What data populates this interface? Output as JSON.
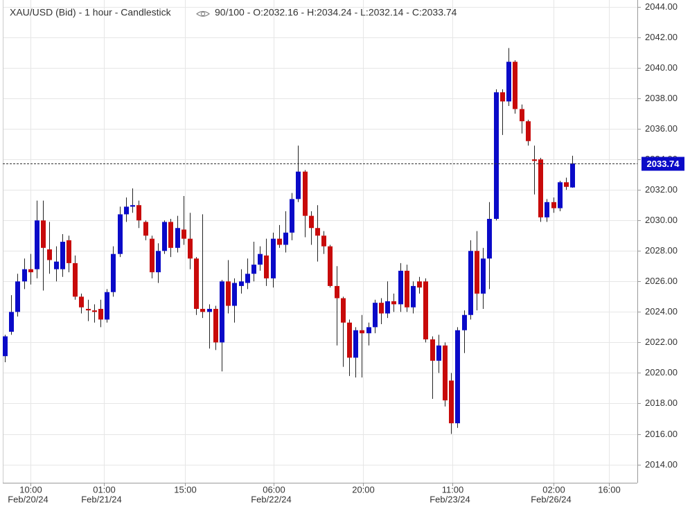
{
  "chart_data": {
    "type": "candlestick",
    "title": "XAU/USD (Bid) - 1 hour - Candlestick",
    "subtitle": "90/100 - O:2032.16 - H:2034.24 - L:2032.14 - C:2033.74",
    "up_color": "#0a0ac8",
    "down_color": "#c80a0a",
    "grid": true,
    "open": [
      2021.1,
      2022.7,
      2024.0,
      2026.0,
      2026.8,
      2026.8,
      2030.0,
      2028.1,
      2026.8,
      2026.8,
      2028.7,
      2027.2,
      2025.0,
      2024.2,
      2024.1,
      2024.2,
      2023.5,
      2025.3,
      2027.8,
      2030.4,
      2030.9,
      2031.0,
      2029.9,
      2028.8,
      2026.6,
      2028.0,
      2029.9,
      2028.2,
      2029.4,
      2028.8,
      2027.5,
      2024.2,
      2024.0,
      2024.2,
      2022.0,
      2026.0,
      2024.4,
      2025.7,
      2025.9,
      2026.5,
      2027.1,
      2027.7,
      2026.2,
      2028.8,
      2028.4,
      2029.2,
      2031.4,
      2033.2,
      2030.3,
      2029.5,
      2029.0,
      2028.3,
      2025.7,
      2024.9,
      2023.3,
      2021.0,
      2022.8,
      2022.6,
      2023.0,
      2024.6,
      2023.9,
      2024.7,
      2024.5,
      2026.7,
      2024.3,
      2026.0,
      2026.0,
      2022.2,
      2020.8,
      2021.8,
      2019.5,
      2016.7,
      2022.8,
      2023.8,
      2028.0,
      2025.2,
      2027.5,
      2030.1,
      2038.4,
      2037.8,
      2040.4,
      2037.3,
      2036.5,
      2034.0,
      2034.0,
      2030.2,
      2031.2,
      2030.8,
      2032.5,
      2032.16
    ],
    "high": [
      2022.5,
      2025.1,
      2026.5,
      2027.5,
      2027.8,
      2031.3,
      2031.3,
      2029.9,
      2028.3,
      2029.1,
      2029.0,
      2027.7,
      2025.2,
      2024.8,
      2024.5,
      2024.8,
      2025.5,
      2028.3,
      2030.9,
      2031.5,
      2032.1,
      2031.3,
      2030.0,
      2029.0,
      2028.5,
      2030.0,
      2030.1,
      2030.3,
      2031.6,
      2030.5,
      2027.6,
      2030.4,
      2024.5,
      2024.4,
      2026.1,
      2027.4,
      2026.2,
      2026.8,
      2027.5,
      2028.6,
      2028.3,
      2028.8,
      2029.2,
      2029.7,
      2030.6,
      2031.8,
      2034.9,
      2033.3,
      2030.6,
      2031.0,
      2029.3,
      2028.4,
      2027.0,
      2025.0,
      2023.5,
      2023.0,
      2023.8,
      2023.3,
      2024.8,
      2024.9,
      2026.0,
      2025.2,
      2027.2,
      2027.1,
      2026.0,
      2026.3,
      2026.2,
      2022.4,
      2022.5,
      2022.0,
      2020.0,
      2023.0,
      2024.1,
      2028.7,
      2029.3,
      2028.2,
      2031.2,
      2038.6,
      2038.6,
      2041.3,
      2040.5,
      2037.6,
      2036.6,
      2034.9,
      2034.1,
      2031.4,
      2031.5,
      2032.6,
      2032.8,
      2034.24
    ],
    "low": [
      2020.7,
      2022.5,
      2023.7,
      2025.5,
      2025.8,
      2026.2,
      2025.4,
      2026.5,
      2026.0,
      2026.3,
      2026.6,
      2024.8,
      2023.9,
      2023.4,
      2023.3,
      2023.0,
      2023.3,
      2025.0,
      2027.6,
      2029.9,
      2030.5,
      2029.5,
      2028.7,
      2026.2,
      2025.9,
      2027.8,
      2027.6,
      2027.9,
      2028.4,
      2026.8,
      2023.8,
      2023.6,
      2021.6,
      2021.5,
      2020.1,
      2023.9,
      2023.3,
      2025.2,
      2025.5,
      2026.0,
      2026.7,
      2025.7,
      2025.6,
      2028.2,
      2027.9,
      2028.7,
      2031.2,
      2028.9,
      2028.4,
      2027.3,
      2027.8,
      2025.6,
      2021.8,
      2020.4,
      2019.8,
      2019.7,
      2019.7,
      2021.8,
      2022.6,
      2023.2,
      2023.6,
      2024.0,
      2024.0,
      2024.0,
      2023.9,
      2025.2,
      2022.0,
      2018.3,
      2020.0,
      2017.8,
      2016.0,
      2016.4,
      2021.3,
      2023.5,
      2024.1,
      2024.2,
      2025.5,
      2030.0,
      2035.6,
      2037.5,
      2037.0,
      2035.7,
      2034.9,
      2031.7,
      2029.9,
      2029.9,
      2030.5,
      2030.6,
      2032.0,
      2032.14
    ],
    "close": [
      2022.4,
      2024.0,
      2026.0,
      2026.8,
      2026.6,
      2030.0,
      2028.2,
      2027.4,
      2027.3,
      2028.6,
      2027.2,
      2025.0,
      2024.3,
      2024.1,
      2024.0,
      2023.5,
      2025.3,
      2027.8,
      2030.4,
      2030.9,
      2031.0,
      2030.0,
      2029.0,
      2026.6,
      2028.0,
      2029.9,
      2028.2,
      2029.5,
      2028.8,
      2027.5,
      2024.2,
      2024.0,
      2024.2,
      2022.0,
      2026.0,
      2024.4,
      2025.9,
      2026.0,
      2026.5,
      2027.1,
      2027.8,
      2026.2,
      2028.8,
      2028.4,
      2029.2,
      2031.4,
      2033.2,
      2030.3,
      2029.5,
      2029.0,
      2028.3,
      2025.7,
      2024.9,
      2023.3,
      2021.0,
      2022.8,
      2022.6,
      2023.0,
      2024.6,
      2023.9,
      2024.7,
      2024.5,
      2026.7,
      2024.3,
      2025.7,
      2025.6,
      2022.2,
      2020.8,
      2021.8,
      2018.2,
      2016.7,
      2022.8,
      2023.8,
      2028.0,
      2025.2,
      2027.5,
      2030.1,
      2038.4,
      2037.8,
      2040.4,
      2037.3,
      2036.5,
      2035.2,
      2033.9,
      2030.2,
      2031.2,
      2030.8,
      2032.5,
      2032.2,
      2033.74
    ],
    "xlim": [
      -0.33,
      99.2
    ],
    "xticks": [
      {
        "value": 4.0,
        "label": "10:00"
      },
      {
        "value": 15.5,
        "label": "01:00"
      },
      {
        "value": 28.2,
        "label": "15:00"
      },
      {
        "value": 42.2,
        "label": "06:00"
      },
      {
        "value": 56.2,
        "label": "20:00"
      },
      {
        "value": 70.2,
        "label": "11:00"
      },
      {
        "value": 86.1,
        "label": "02:00"
      },
      {
        "value": 94.7,
        "label": "16:00"
      }
    ],
    "xtick_dates": [
      "Feb/20/24",
      "Feb/21/24",
      null,
      "Feb/22/24",
      null,
      "Feb/23/24",
      "Feb/26/24",
      null
    ],
    "ylim": [
      2012.8,
      2044.45
    ],
    "yticks": [
      {
        "value": 2014,
        "label": "2014.00"
      },
      {
        "value": 2016,
        "label": "2016.00"
      },
      {
        "value": 2018,
        "label": "2018.00"
      },
      {
        "value": 2020,
        "label": "2020.00"
      },
      {
        "value": 2022,
        "label": "2022.00"
      },
      {
        "value": 2024,
        "label": "2024.00"
      },
      {
        "value": 2026,
        "label": "2026.00"
      },
      {
        "value": 2028,
        "label": "2028.00"
      },
      {
        "value": 2030,
        "label": "2030.00"
      },
      {
        "value": 2032,
        "label": "2032.00"
      },
      {
        "value": 2034,
        "label": "2034.00"
      },
      {
        "value": 2036,
        "label": "2036.00"
      },
      {
        "value": 2038,
        "label": "2038.00"
      },
      {
        "value": 2040,
        "label": "2040.00"
      },
      {
        "value": 2042,
        "label": "2042.00"
      },
      {
        "value": 2044,
        "label": "2044.00"
      }
    ]
  }
}
